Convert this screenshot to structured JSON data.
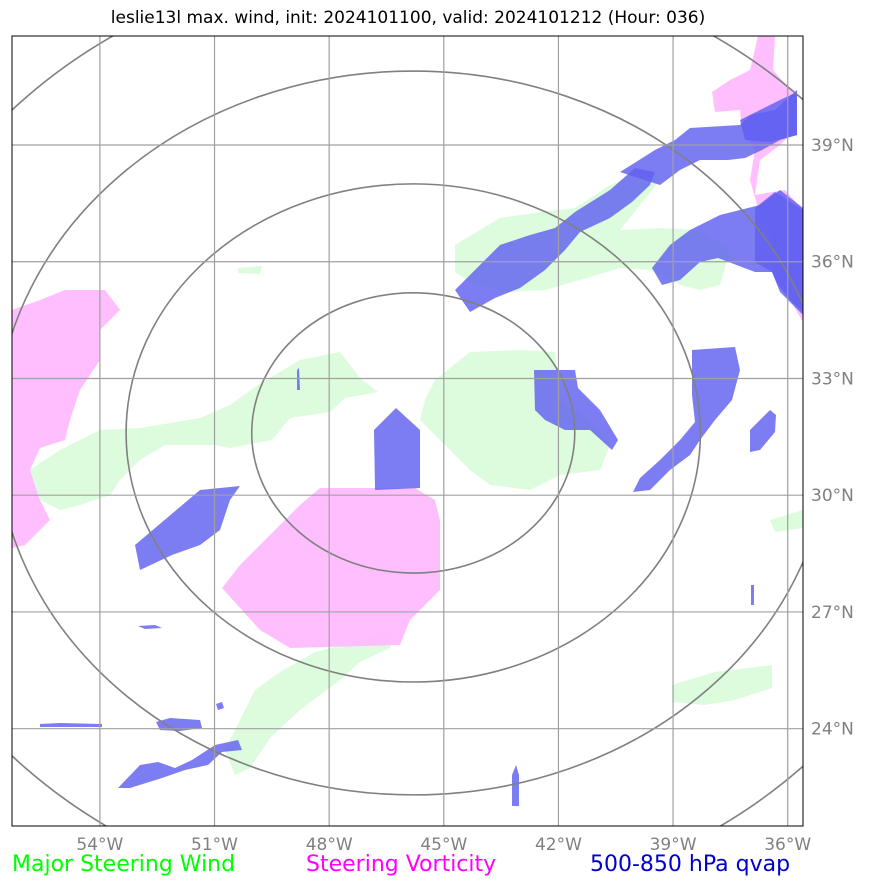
{
  "title": "leslie13l max. wind, init: 2024101100, valid: 2024101212 (Hour: 036)",
  "map": {
    "lon_range": [
      -56.3,
      -35.6
    ],
    "lat_range": [
      21.5,
      41.8
    ],
    "center": {
      "lon": -45.8,
      "lat": 31.6
    },
    "range_rings_deg": [
      3.6,
      6.4,
      9.3,
      12.2
    ],
    "lon_ticks": [
      {
        "value": -54,
        "label": "54°W"
      },
      {
        "value": -51,
        "label": "51°W"
      },
      {
        "value": -48,
        "label": "48°W"
      },
      {
        "value": -45,
        "label": "45°W"
      },
      {
        "value": -42,
        "label": "42°W"
      },
      {
        "value": -39,
        "label": "39°W"
      },
      {
        "value": -36,
        "label": "36°W"
      }
    ],
    "lat_ticks": [
      {
        "value": 39,
        "label": "39°N"
      },
      {
        "value": 36,
        "label": "36°N"
      },
      {
        "value": 33,
        "label": "33°N"
      },
      {
        "value": 30,
        "label": "30°N"
      },
      {
        "value": 27,
        "label": "27°N"
      },
      {
        "value": 24,
        "label": "24°N"
      }
    ],
    "grid": true
  },
  "layers": {
    "wind": {
      "color": "#d9fcd9"
    },
    "vorticity": {
      "color": "#ffb8ff"
    },
    "qvap": {
      "color": "#6060f0"
    }
  },
  "legend": {
    "wind": {
      "label": "Major Steering Wind",
      "color": "#00ff00"
    },
    "vorticity": {
      "label": "Steering Vorticity",
      "color": "#ff00ff"
    },
    "qvap": {
      "label": "500-850 hPa qvap",
      "color": "#0000cc"
    }
  }
}
